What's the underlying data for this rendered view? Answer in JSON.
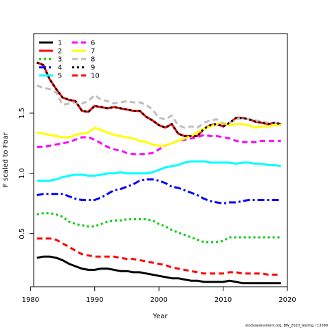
{
  "chart_data": {
    "type": "line",
    "xlabel": "Year",
    "ylabel": "F scaled to Fbar",
    "xlim": [
      1980.5,
      2020
    ],
    "ylim": [
      0.06,
      2.16
    ],
    "x_ticks": [
      1980,
      1990,
      2000,
      2010,
      2020
    ],
    "x_tick_labels": [
      "1980",
      "1990",
      "2000",
      "2010",
      "2020"
    ],
    "y_ticks": [
      0.5,
      1.0,
      1.5
    ],
    "y_tick_labels": [
      "0.5",
      "1.0",
      "1.5"
    ],
    "grid": false,
    "legend_position": "top-left",
    "x": [
      1981,
      1982,
      1983,
      1984,
      1985,
      1986,
      1987,
      1988,
      1989,
      1990,
      1991,
      1992,
      1993,
      1994,
      1995,
      1996,
      1997,
      1998,
      1999,
      2000,
      2001,
      2002,
      2003,
      2004,
      2005,
      2006,
      2007,
      2008,
      2009,
      2010,
      2011,
      2012,
      2013,
      2014,
      2015,
      2016,
      2017,
      2018,
      2019
    ],
    "series": [
      {
        "name": "1",
        "color": "#000000",
        "dash": "solid",
        "values": [
          0.3,
          0.31,
          0.31,
          0.3,
          0.28,
          0.25,
          0.23,
          0.21,
          0.2,
          0.2,
          0.21,
          0.21,
          0.2,
          0.19,
          0.19,
          0.18,
          0.18,
          0.17,
          0.16,
          0.15,
          0.14,
          0.13,
          0.13,
          0.12,
          0.11,
          0.11,
          0.1,
          0.1,
          0.1,
          0.1,
          0.11,
          0.1,
          0.09,
          0.09,
          0.09,
          0.09,
          0.09,
          0.09,
          0.09
        ]
      },
      {
        "name": "2",
        "color": "#ff0000",
        "dash": "solid",
        "values": [
          1.92,
          1.9,
          1.78,
          1.7,
          1.63,
          1.61,
          1.6,
          1.52,
          1.51,
          1.56,
          1.55,
          1.54,
          1.55,
          1.54,
          1.53,
          1.52,
          1.52,
          1.47,
          1.44,
          1.4,
          1.38,
          1.41,
          1.33,
          1.31,
          1.31,
          1.31,
          1.37,
          1.4,
          1.41,
          1.39,
          1.42,
          1.46,
          1.46,
          1.45,
          1.43,
          1.42,
          1.41,
          1.42,
          1.41
        ]
      },
      {
        "name": "3",
        "color": "#00cc00",
        "dash": "dotted",
        "values": [
          0.66,
          0.67,
          0.67,
          0.66,
          0.64,
          0.6,
          0.58,
          0.57,
          0.56,
          0.56,
          0.58,
          0.6,
          0.61,
          0.61,
          0.62,
          0.62,
          0.62,
          0.62,
          0.61,
          0.58,
          0.56,
          0.53,
          0.51,
          0.49,
          0.47,
          0.45,
          0.43,
          0.43,
          0.43,
          0.44,
          0.47,
          0.47,
          0.47,
          0.47,
          0.47,
          0.47,
          0.47,
          0.47,
          0.47
        ]
      },
      {
        "name": "4",
        "color": "#0000ff",
        "dash": "dashdot",
        "values": [
          0.82,
          0.83,
          0.83,
          0.83,
          0.83,
          0.81,
          0.79,
          0.78,
          0.78,
          0.78,
          0.8,
          0.83,
          0.86,
          0.87,
          0.89,
          0.91,
          0.94,
          0.95,
          0.95,
          0.94,
          0.92,
          0.89,
          0.88,
          0.86,
          0.84,
          0.82,
          0.79,
          0.77,
          0.76,
          0.75,
          0.76,
          0.76,
          0.77,
          0.78,
          0.78,
          0.78,
          0.78,
          0.78,
          0.78
        ]
      },
      {
        "name": "5",
        "color": "#00ffff",
        "dash": "solid",
        "values": [
          0.94,
          0.94,
          0.94,
          0.95,
          0.97,
          0.98,
          0.99,
          0.99,
          0.98,
          0.98,
          0.99,
          1.0,
          1.0,
          1.01,
          1.0,
          1.0,
          1.0,
          1.0,
          1.01,
          1.03,
          1.05,
          1.06,
          1.07,
          1.09,
          1.1,
          1.1,
          1.1,
          1.09,
          1.09,
          1.09,
          1.09,
          1.08,
          1.09,
          1.09,
          1.08,
          1.08,
          1.07,
          1.07,
          1.06
        ]
      },
      {
        "name": "6",
        "color": "#ff00ff",
        "dash": "dashed",
        "values": [
          1.22,
          1.22,
          1.23,
          1.24,
          1.25,
          1.26,
          1.28,
          1.3,
          1.3,
          1.28,
          1.25,
          1.22,
          1.2,
          1.19,
          1.17,
          1.16,
          1.16,
          1.16,
          1.17,
          1.2,
          1.23,
          1.25,
          1.27,
          1.28,
          1.29,
          1.3,
          1.32,
          1.31,
          1.31,
          1.3,
          1.29,
          1.27,
          1.26,
          1.26,
          1.26,
          1.27,
          1.27,
          1.27,
          1.27
        ]
      },
      {
        "name": "7",
        "color": "#ffff00",
        "dash": "solid",
        "values": [
          1.34,
          1.33,
          1.32,
          1.31,
          1.3,
          1.3,
          1.32,
          1.33,
          1.34,
          1.38,
          1.36,
          1.34,
          1.32,
          1.31,
          1.3,
          1.29,
          1.27,
          1.26,
          1.24,
          1.23,
          1.23,
          1.25,
          1.27,
          1.29,
          1.31,
          1.34,
          1.37,
          1.39,
          1.41,
          1.42,
          1.4,
          1.41,
          1.41,
          1.4,
          1.38,
          1.39,
          1.39,
          1.4,
          1.4
        ]
      },
      {
        "name": "8",
        "color": "#bebebe",
        "dash": "dashed",
        "values": [
          1.73,
          1.71,
          1.7,
          1.67,
          1.57,
          1.58,
          1.59,
          1.58,
          1.6,
          1.65,
          1.61,
          1.6,
          1.58,
          1.59,
          1.6,
          1.59,
          1.59,
          1.57,
          1.53,
          1.46,
          1.45,
          1.48,
          1.4,
          1.38,
          1.39,
          1.38,
          1.42,
          1.44,
          1.45,
          1.41,
          1.42,
          1.45,
          1.46,
          1.45,
          1.44,
          1.43,
          1.42,
          1.42,
          1.42
        ]
      },
      {
        "name": "9",
        "color": "#000000",
        "dash": "dotted",
        "values": [
          1.92,
          1.9,
          1.78,
          1.7,
          1.63,
          1.61,
          1.6,
          1.52,
          1.51,
          1.56,
          1.55,
          1.54,
          1.55,
          1.54,
          1.53,
          1.52,
          1.52,
          1.47,
          1.44,
          1.4,
          1.38,
          1.41,
          1.33,
          1.31,
          1.31,
          1.31,
          1.37,
          1.4,
          1.41,
          1.39,
          1.42,
          1.46,
          1.46,
          1.45,
          1.43,
          1.42,
          1.41,
          1.42,
          1.41
        ]
      },
      {
        "name": "10",
        "color": "#ff0000",
        "dash": "dashed",
        "values": [
          0.46,
          0.46,
          0.46,
          0.45,
          0.42,
          0.39,
          0.36,
          0.33,
          0.32,
          0.31,
          0.31,
          0.31,
          0.31,
          0.3,
          0.29,
          0.29,
          0.28,
          0.27,
          0.26,
          0.25,
          0.24,
          0.22,
          0.21,
          0.2,
          0.19,
          0.18,
          0.17,
          0.17,
          0.17,
          0.17,
          0.18,
          0.18,
          0.17,
          0.17,
          0.17,
          0.17,
          0.16,
          0.16,
          0.16
        ]
      }
    ],
    "footnote": "stockassessment.org, BW_2020_testing, r13089"
  }
}
